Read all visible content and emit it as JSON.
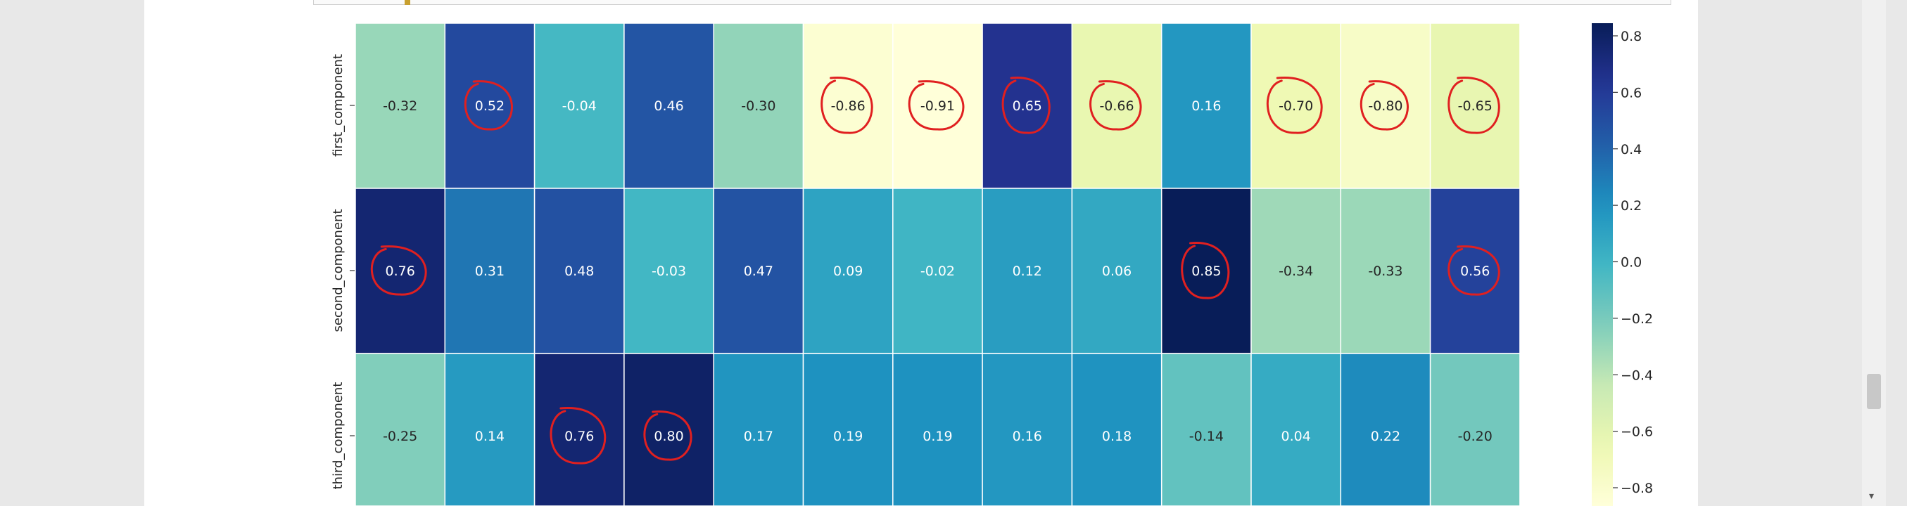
{
  "chart_data": {
    "type": "heatmap",
    "colormap": "YlGnBu",
    "rows": [
      "first_component",
      "second_component",
      "third_component"
    ],
    "values": [
      [
        -0.32,
        0.52,
        -0.04,
        0.46,
        -0.3,
        -0.86,
        -0.91,
        0.65,
        -0.66,
        0.16,
        -0.7,
        -0.8,
        -0.65
      ],
      [
        0.76,
        0.31,
        0.48,
        -0.03,
        0.47,
        0.09,
        -0.02,
        0.12,
        0.06,
        0.85,
        -0.34,
        -0.33,
        0.56
      ],
      [
        -0.25,
        0.14,
        0.76,
        0.8,
        0.17,
        0.19,
        0.19,
        0.16,
        0.18,
        -0.14,
        0.04,
        0.22,
        -0.2
      ]
    ],
    "labels": [
      [
        "-0.32",
        "0.52",
        "-0.04",
        "0.46",
        "-0.30",
        "-0.86",
        "-0.91",
        "0.65",
        "-0.66",
        "0.16",
        "-0.70",
        "-0.80",
        "-0.65"
      ],
      [
        "0.76",
        "0.31",
        "0.48",
        "-0.03",
        "0.47",
        "0.09",
        "-0.02",
        "0.12",
        "0.06",
        "0.85",
        "-0.34",
        "-0.33",
        "0.56"
      ],
      [
        "-0.25",
        "0.14",
        "0.76",
        "0.80",
        "0.17",
        "0.19",
        "0.19",
        "0.16",
        "0.18",
        "-0.14",
        "0.04",
        "0.22",
        "-0.20"
      ]
    ],
    "colorbar": {
      "range": [
        -0.9,
        0.85
      ],
      "ticks": [
        0.8,
        0.6,
        0.4,
        0.2,
        0.0,
        -0.2,
        -0.4,
        -0.6,
        -0.8
      ],
      "tick_labels": [
        "0.8",
        "0.6",
        "0.4",
        "0.2",
        "0.0",
        "−0.2",
        "−0.4",
        "−0.6",
        "−0.8"
      ]
    },
    "circled_cells": [
      [
        0,
        1
      ],
      [
        0,
        5
      ],
      [
        0,
        6
      ],
      [
        0,
        7
      ],
      [
        0,
        8
      ],
      [
        0,
        10
      ],
      [
        0,
        11
      ],
      [
        0,
        12
      ],
      [
        1,
        0
      ],
      [
        1,
        9
      ],
      [
        1,
        12
      ],
      [
        2,
        2
      ],
      [
        2,
        3
      ]
    ],
    "annotation_color": "#e02020"
  },
  "scrollbar": {
    "down_arrow": "▾"
  }
}
